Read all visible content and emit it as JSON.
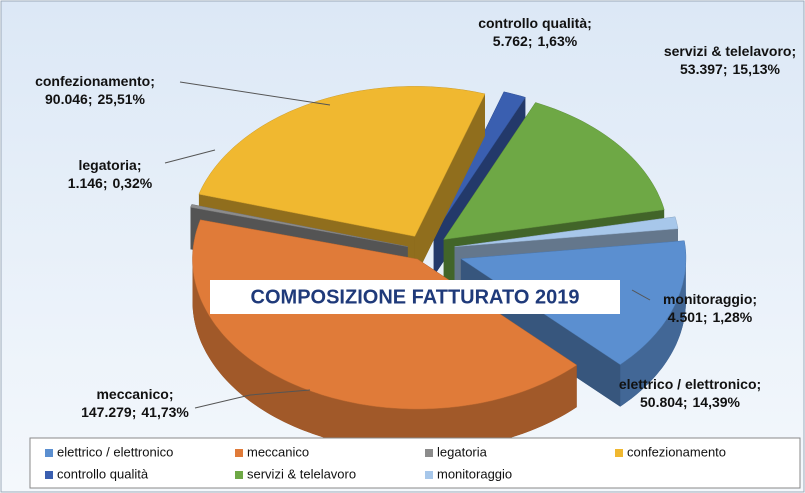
{
  "chart_data": {
    "type": "pie3d",
    "title": "COMPOSIZIONE FATTURATO 2019",
    "categories": [
      "elettrico / elettronico",
      "meccanico",
      "legatoria",
      "confezionamento",
      "controllo qualità",
      "servizi & telelavoro",
      "monitoraggio"
    ],
    "values": [
      50804,
      147279,
      1146,
      90046,
      5762,
      53397,
      4501
    ],
    "value_labels": [
      "50.804",
      "147.279",
      "1.146",
      "90.046",
      "5.762",
      "53.397",
      "4.501"
    ],
    "percents": [
      14.39,
      41.73,
      0.32,
      25.51,
      1.63,
      15.13,
      1.28
    ],
    "percent_labels": [
      "14,39%",
      "41,73%",
      "0,32%",
      "25,51%",
      "1,63%",
      "15,13%",
      "1,28%"
    ],
    "label_separator": ";",
    "colors": [
      "#5b8fd0",
      "#e07b39",
      "#8c8c8c",
      "#f0b830",
      "#3a5fb0",
      "#6ea845",
      "#a7c7ea"
    ],
    "legend": "bottom"
  }
}
